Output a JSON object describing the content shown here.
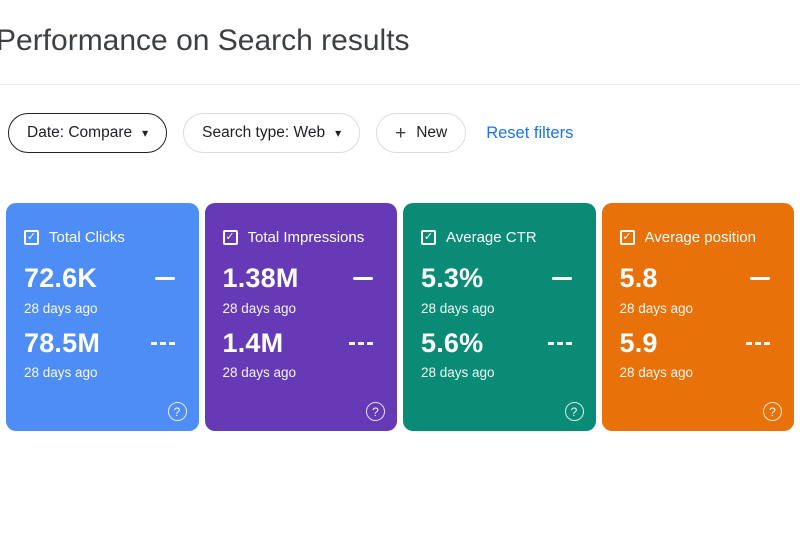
{
  "header": {
    "title": "Performance on Search results"
  },
  "toolbar": {
    "date_filter_label": "Date: Compare",
    "search_type_filter_label": "Search type: Web",
    "new_filter_label": "New",
    "reset_label": "Reset filters"
  },
  "icons": {
    "dropdown": "▾",
    "plus": "+",
    "check": "✓",
    "help": "?"
  },
  "colors": {
    "link": "#1a73e8",
    "card_clicks": "#4e8df6",
    "card_impressions": "#6639b7",
    "card_ctr": "#0a8b76",
    "card_position": "#e8710a"
  },
  "cards": [
    {
      "label": "Total Clicks",
      "color": "#4e8df6",
      "checked": true,
      "current": {
        "value": "72.6K",
        "period": "28 days ago",
        "indicator": "solid"
      },
      "previous": {
        "value": "78.5M",
        "period": "28 days ago",
        "indicator": "dashed"
      }
    },
    {
      "label": "Total Impressions",
      "color": "#6639b7",
      "checked": true,
      "current": {
        "value": "1.38M",
        "period": "28 days ago",
        "indicator": "solid"
      },
      "previous": {
        "value": "1.4M",
        "period": "28 days ago",
        "indicator": "dashed"
      }
    },
    {
      "label": "Average CTR",
      "color": "#0a8b76",
      "checked": true,
      "current": {
        "value": "5.3%",
        "period": "28 days ago",
        "indicator": "solid"
      },
      "previous": {
        "value": "5.6%",
        "period": "28 days ago",
        "indicator": "dashed"
      }
    },
    {
      "label": "Average position",
      "color": "#e8710a",
      "checked": true,
      "current": {
        "value": "5.8",
        "period": "28 days ago",
        "indicator": "solid"
      },
      "previous": {
        "value": "5.9",
        "period": "28 days ago",
        "indicator": "dashed"
      }
    }
  ]
}
